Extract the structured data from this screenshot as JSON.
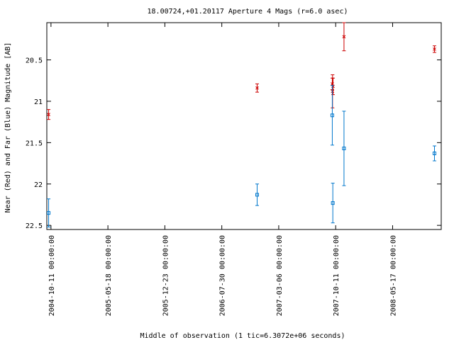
{
  "chart_data": {
    "type": "scatter",
    "title": "18.00724,+01.20117   Aperture 4 Mags (r=6.0 asec)",
    "xlabel": "Middle of observation (1 tic=6.3072e+06 seconds)",
    "ylabel": "Near (Red) and Far (Blue) Magnitude [AB]",
    "x_type": "date",
    "xlim": [
      "2004-09-25",
      "2008-11-20"
    ],
    "ylim": [
      22.55,
      20.05
    ],
    "y_inverted": true,
    "x_ticks": [
      "2004-10-11 00:00:00",
      "2005-05-18 00:00:00",
      "2005-12-23 00:00:00",
      "2006-07-30 00:00:00",
      "2007-03-06 00:00:00",
      "2007-10-11 00:00:00",
      "2008-05-17 00:00:00"
    ],
    "y_ticks": [
      20.5,
      21,
      21.5,
      22,
      22.5
    ],
    "y_tick_labels": [
      "20.5",
      "21",
      "21.5",
      "22",
      "22.5"
    ],
    "grid": false,
    "series": [
      {
        "color": "#cc0000",
        "marker": "x",
        "points": [
          {
            "x": "2004-10-02",
            "y": 21.16,
            "err": 0.06
          },
          {
            "x": "2006-12-13",
            "y": 20.84,
            "err": 0.05
          },
          {
            "x": "2007-09-28",
            "y": 20.79,
            "err": 0.07
          },
          {
            "x": "2007-09-29",
            "y": 20.88,
            "err": 0.2
          },
          {
            "x": "2007-10-01",
            "y": 20.82,
            "err": 0.1
          },
          {
            "x": "2007-11-12",
            "y": 20.22,
            "err": 0.17
          },
          {
            "x": "2008-10-25",
            "y": 20.37,
            "err": 0.04
          }
        ]
      },
      {
        "color": "#0077cc",
        "marker": "square",
        "points": [
          {
            "x": "2004-10-02",
            "y": 22.35,
            "err": 0.17
          },
          {
            "x": "2006-12-13",
            "y": 22.13,
            "err": 0.13
          },
          {
            "x": "2007-09-28",
            "y": 21.17,
            "err": 0.36
          },
          {
            "x": "2007-09-30",
            "y": 22.23,
            "err": 0.24
          },
          {
            "x": "2007-11-12",
            "y": 21.57,
            "err": 0.45
          },
          {
            "x": "2008-10-25",
            "y": 21.63,
            "err": 0.09
          }
        ]
      }
    ]
  }
}
